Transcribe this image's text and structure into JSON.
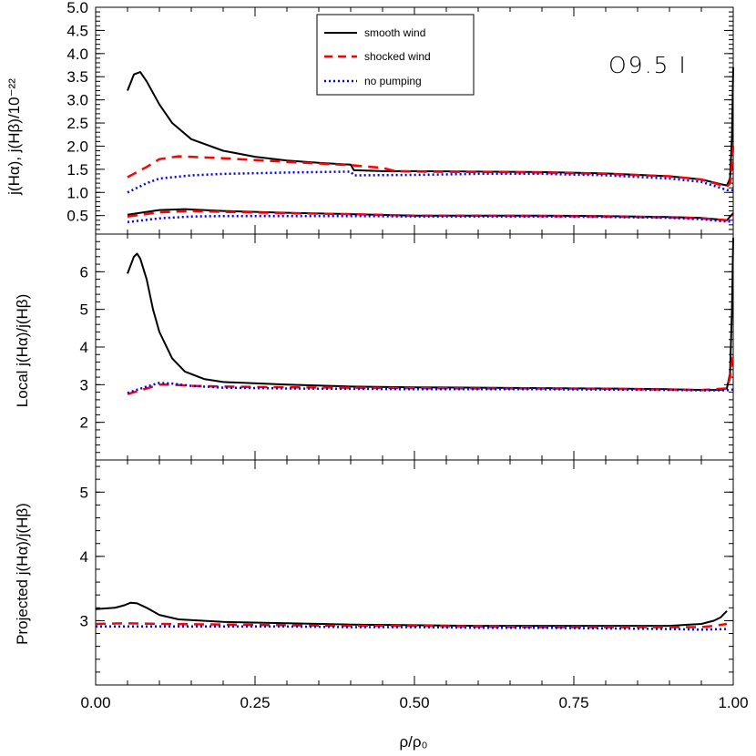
{
  "chart_data": [
    {
      "type": "line",
      "panel": "top",
      "ylabel": "j(Hα), j(Hβ)/10⁻²²",
      "ylim": [
        0.1,
        5.0
      ],
      "xlim": [
        0.0,
        1.0
      ],
      "yticks": [
        0.5,
        1.0,
        1.5,
        2.0,
        2.5,
        3.0,
        3.5,
        4.0,
        4.5,
        5.0
      ],
      "ytick_labels": [
        "0.5",
        "1.0",
        "1.5",
        "2.0",
        "2.5",
        "3.0",
        "3.5",
        "4.0",
        "4.5",
        "5.0"
      ],
      "legend": {
        "placement": "top-center",
        "entries": [
          {
            "label": "smooth wind",
            "color": "#000000",
            "style": "solid"
          },
          {
            "label": "shocked wind",
            "color": "#ff0000",
            "style": "dashed"
          },
          {
            "label": "no pumping",
            "color": "#0000ff",
            "style": "dotted"
          }
        ]
      },
      "annotation": "O9.5 I",
      "series": [
        {
          "name": "smooth wind",
          "color": "#000000",
          "style": "solid",
          "x": [
            0.05,
            0.06,
            0.07,
            0.08,
            0.1,
            0.12,
            0.15,
            0.2,
            0.25,
            0.3,
            0.35,
            0.4,
            0.405,
            0.45,
            0.5,
            0.6,
            0.7,
            0.8,
            0.9,
            0.95,
            0.98,
            0.99,
            0.995,
            0.998,
            1.0
          ],
          "y": [
            3.2,
            3.55,
            3.6,
            3.4,
            2.9,
            2.5,
            2.15,
            1.9,
            1.77,
            1.69,
            1.64,
            1.6,
            1.48,
            1.46,
            1.46,
            1.45,
            1.44,
            1.41,
            1.35,
            1.28,
            1.18,
            1.15,
            1.3,
            2.2,
            3.7
          ]
        },
        {
          "name": "smooth wind (Hβ)",
          "color": "#000000",
          "style": "solid",
          "x": [
            0.05,
            0.08,
            0.1,
            0.14,
            0.2,
            0.3,
            0.4,
            0.5,
            0.6,
            0.7,
            0.8,
            0.9,
            0.95,
            0.99,
            1.0
          ],
          "y": [
            0.52,
            0.58,
            0.62,
            0.64,
            0.6,
            0.56,
            0.53,
            0.5,
            0.5,
            0.5,
            0.49,
            0.47,
            0.45,
            0.4,
            0.55
          ]
        },
        {
          "name": "shocked wind",
          "color": "#ff0000",
          "style": "dashed",
          "x": [
            0.05,
            0.08,
            0.1,
            0.13,
            0.2,
            0.3,
            0.4,
            0.45,
            0.47,
            0.5,
            0.6,
            0.7,
            0.8,
            0.9,
            0.95,
            0.98,
            0.99,
            0.995,
            0.998,
            1.0
          ],
          "y": [
            1.33,
            1.55,
            1.72,
            1.78,
            1.74,
            1.66,
            1.59,
            1.53,
            1.46,
            1.45,
            1.44,
            1.43,
            1.4,
            1.35,
            1.28,
            1.16,
            1.12,
            1.2,
            1.6,
            2.0
          ]
        },
        {
          "name": "shocked wind (Hβ)",
          "color": "#ff0000",
          "style": "dashed",
          "x": [
            0.05,
            0.1,
            0.15,
            0.2,
            0.3,
            0.4,
            0.5,
            0.6,
            0.7,
            0.8,
            0.9,
            0.95,
            0.99,
            1.0
          ],
          "y": [
            0.48,
            0.57,
            0.6,
            0.58,
            0.55,
            0.53,
            0.5,
            0.5,
            0.49,
            0.48,
            0.46,
            0.44,
            0.4,
            0.5
          ]
        },
        {
          "name": "no pumping",
          "color": "#0000ff",
          "style": "dotted",
          "x": [
            0.05,
            0.08,
            0.1,
            0.15,
            0.2,
            0.3,
            0.4,
            0.405,
            0.5,
            0.6,
            0.7,
            0.8,
            0.9,
            0.95,
            0.98,
            0.99,
            1.0
          ],
          "y": [
            1.0,
            1.2,
            1.3,
            1.37,
            1.4,
            1.43,
            1.45,
            1.37,
            1.38,
            1.4,
            1.4,
            1.37,
            1.3,
            1.23,
            1.1,
            1.05,
            1.05
          ]
        },
        {
          "name": "no pumping (Hβ)",
          "color": "#0000ff",
          "style": "dotted",
          "x": [
            0.05,
            0.1,
            0.15,
            0.2,
            0.3,
            0.4,
            0.5,
            0.6,
            0.7,
            0.8,
            0.9,
            0.95,
            0.99,
            1.0
          ],
          "y": [
            0.36,
            0.44,
            0.48,
            0.49,
            0.49,
            0.49,
            0.48,
            0.48,
            0.48,
            0.47,
            0.45,
            0.42,
            0.37,
            0.37
          ]
        }
      ]
    },
    {
      "type": "line",
      "panel": "middle",
      "ylabel": "Local j(Hα)/j(Hβ)",
      "ylim": [
        1.0,
        7.0
      ],
      "xlim": [
        0.0,
        1.0
      ],
      "yticks": [
        2,
        3,
        4,
        5,
        6
      ],
      "ytick_labels": [
        "2",
        "3",
        "4",
        "5",
        "6"
      ],
      "series": [
        {
          "name": "smooth wind",
          "color": "#000000",
          "style": "solid",
          "x": [
            0.05,
            0.06,
            0.065,
            0.07,
            0.08,
            0.09,
            0.1,
            0.12,
            0.14,
            0.17,
            0.2,
            0.3,
            0.4,
            0.5,
            0.6,
            0.7,
            0.8,
            0.9,
            0.95,
            0.98,
            0.99,
            0.995,
            0.998,
            1.0
          ],
          "y": [
            5.95,
            6.4,
            6.48,
            6.35,
            5.8,
            5.0,
            4.4,
            3.7,
            3.35,
            3.15,
            3.07,
            3.0,
            2.95,
            2.93,
            2.92,
            2.91,
            2.9,
            2.88,
            2.86,
            2.86,
            2.9,
            3.3,
            5.0,
            6.9
          ]
        },
        {
          "name": "shocked wind",
          "color": "#ff0000",
          "style": "dashed",
          "x": [
            0.05,
            0.08,
            0.1,
            0.12,
            0.15,
            0.2,
            0.3,
            0.4,
            0.5,
            0.6,
            0.7,
            0.8,
            0.9,
            0.95,
            0.99,
            0.995,
            0.998,
            1.0
          ],
          "y": [
            2.75,
            2.9,
            3.0,
            3.0,
            2.97,
            2.95,
            2.93,
            2.92,
            2.91,
            2.9,
            2.9,
            2.89,
            2.87,
            2.86,
            2.9,
            3.2,
            3.6,
            3.8
          ]
        },
        {
          "name": "no pumping",
          "color": "#0000ff",
          "style": "dotted",
          "x": [
            0.05,
            0.08,
            0.1,
            0.12,
            0.15,
            0.2,
            0.3,
            0.4,
            0.5,
            0.6,
            0.7,
            0.8,
            0.9,
            0.95,
            0.99,
            1.0
          ],
          "y": [
            2.78,
            2.95,
            3.05,
            3.03,
            2.97,
            2.92,
            2.9,
            2.89,
            2.88,
            2.88,
            2.88,
            2.87,
            2.86,
            2.85,
            2.85,
            2.87
          ]
        }
      ]
    },
    {
      "type": "line",
      "panel": "bottom",
      "ylabel": "Projected j(Hα)/j(Hβ)",
      "xlabel": "ρ/ρ₀",
      "ylim": [
        2.0,
        5.5
      ],
      "xlim": [
        0.0,
        1.0
      ],
      "yticks": [
        3,
        4,
        5
      ],
      "ytick_labels": [
        "3",
        "4",
        "5"
      ],
      "xticks": [
        0.0,
        0.25,
        0.5,
        0.75,
        1.0
      ],
      "xtick_labels": [
        "0.00",
        "0.25",
        "0.50",
        "0.75",
        "1.00"
      ],
      "series": [
        {
          "name": "smooth wind",
          "color": "#000000",
          "style": "solid",
          "x": [
            0.0,
            0.03,
            0.045,
            0.055,
            0.065,
            0.08,
            0.1,
            0.13,
            0.2,
            0.3,
            0.4,
            0.5,
            0.6,
            0.7,
            0.8,
            0.9,
            0.95,
            0.97,
            0.98,
            0.99
          ],
          "y": [
            3.18,
            3.2,
            3.24,
            3.28,
            3.27,
            3.2,
            3.09,
            3.02,
            2.98,
            2.96,
            2.94,
            2.93,
            2.92,
            2.92,
            2.92,
            2.92,
            2.95,
            3.0,
            3.05,
            3.15
          ]
        },
        {
          "name": "shocked wind",
          "color": "#ff0000",
          "style": "dashed",
          "x": [
            0.0,
            0.05,
            0.1,
            0.2,
            0.3,
            0.4,
            0.5,
            0.6,
            0.7,
            0.8,
            0.9,
            0.95,
            0.97,
            0.99
          ],
          "y": [
            2.95,
            2.96,
            2.95,
            2.94,
            2.93,
            2.92,
            2.92,
            2.91,
            2.9,
            2.9,
            2.9,
            2.9,
            2.92,
            2.95
          ]
        },
        {
          "name": "no pumping",
          "color": "#0000ff",
          "style": "dotted",
          "x": [
            0.0,
            0.1,
            0.2,
            0.3,
            0.4,
            0.5,
            0.6,
            0.7,
            0.8,
            0.9,
            0.95,
            0.99
          ],
          "y": [
            2.91,
            2.91,
            2.91,
            2.91,
            2.9,
            2.9,
            2.89,
            2.89,
            2.88,
            2.87,
            2.86,
            2.87
          ]
        }
      ]
    }
  ]
}
